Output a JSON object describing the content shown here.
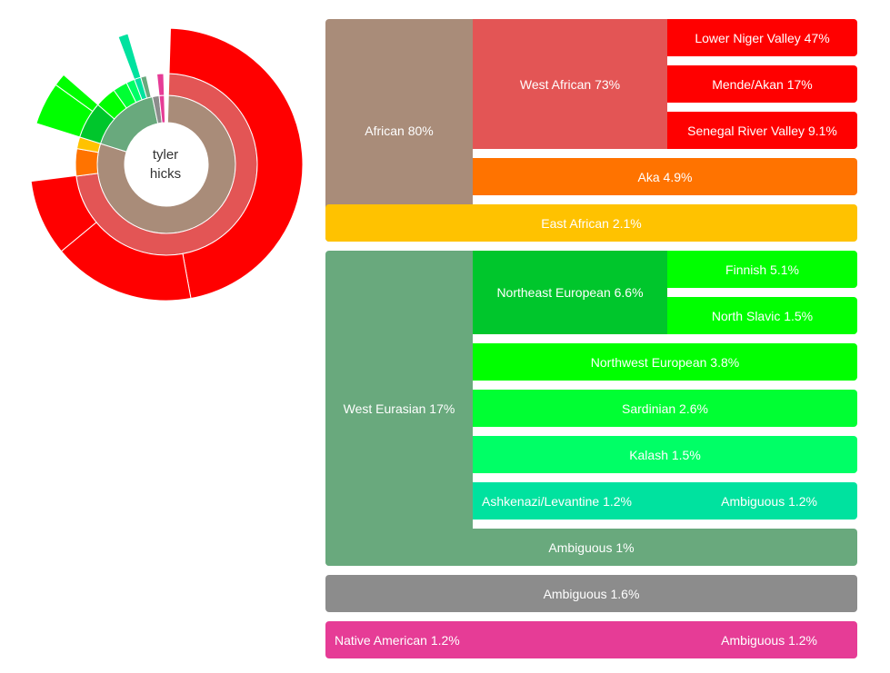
{
  "chart_data": {
    "type": "sunburst",
    "center_label": "tyler\nhicks",
    "hierarchy": [
      {
        "label": "African 80%",
        "value": 80,
        "color": "#A98C79",
        "children": [
          {
            "label": "West African 73%",
            "value": 73,
            "color": "#E35555",
            "children": [
              {
                "label": "Lower Niger Valley 47%",
                "value": 47,
                "color": "#FF0000"
              },
              {
                "label": "Mende/Akan 17%",
                "value": 17,
                "color": "#FF0000"
              },
              {
                "label": "Senegal River Valley 9.1%",
                "value": 9.1,
                "color": "#FF0000"
              }
            ]
          },
          {
            "label": "Aka 4.9%",
            "value": 4.9,
            "color": "#FF7300"
          },
          {
            "label": "East African 2.1%",
            "value": 2.1,
            "color": "#FFC200"
          }
        ]
      },
      {
        "label": "West Eurasian 17%",
        "value": 17,
        "color": "#69A97D",
        "children": [
          {
            "label": "Northeast European 6.6%",
            "value": 6.6,
            "color": "#00C62C",
            "children": [
              {
                "label": "Finnish 5.1%",
                "value": 5.1,
                "color": "#00FF00"
              },
              {
                "label": "North Slavic 1.5%",
                "value": 1.5,
                "color": "#00FF00"
              }
            ]
          },
          {
            "label": "Northwest European 3.8%",
            "value": 3.8,
            "color": "#00FF00"
          },
          {
            "label": "Sardinian 2.6%",
            "value": 2.6,
            "color": "#00FF33"
          },
          {
            "label": "Kalash 1.5%",
            "value": 1.5,
            "color": "#00FF66"
          },
          {
            "label": "Ashkenazi/Levantine 1.2%",
            "value": 1.2,
            "color": "#00E29F",
            "children": [
              {
                "label": "Ambiguous 1.2%",
                "value": 1.2,
                "color": "#00E29F"
              }
            ]
          },
          {
            "label": "Ambiguous 1%",
            "value": 1,
            "color": "#69A97D"
          }
        ]
      },
      {
        "label": "Ambiguous 1.6%",
        "value": 1.6,
        "color": "#8C8C8C"
      },
      {
        "label": "Native American 1.2%",
        "value": 1.2,
        "color": "#E63C96",
        "children": [
          {
            "label": "Ambiguous 1.2%",
            "value": 1.2,
            "color": "#E63C96"
          }
        ]
      }
    ]
  }
}
